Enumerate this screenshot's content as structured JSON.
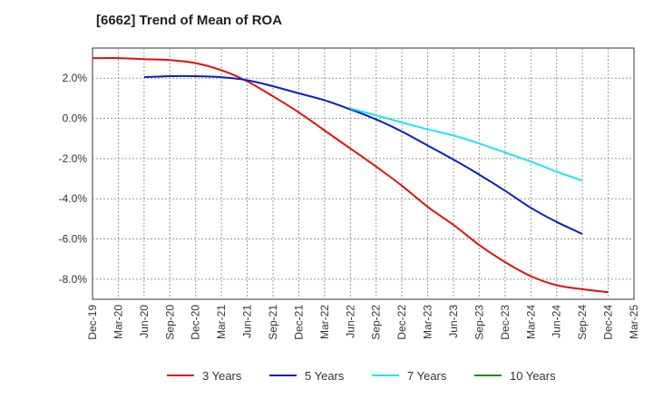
{
  "chart_data": {
    "type": "line",
    "title": "[6662]  Trend of Mean of ROA",
    "xlabel": "",
    "ylabel": "",
    "ylim": [
      -9.0,
      3.5
    ],
    "y_ticks": [
      2.0,
      0.0,
      -2.0,
      -4.0,
      -6.0,
      -8.0
    ],
    "y_tick_labels": [
      "2.0%",
      "0.0%",
      "-2.0%",
      "-4.0%",
      "-6.0%",
      "-8.0%"
    ],
    "x_tick_labels": [
      "Dec-19",
      "Mar-20",
      "Jun-20",
      "Sep-20",
      "Dec-20",
      "Mar-21",
      "Jun-21",
      "Sep-21",
      "Dec-21",
      "Mar-22",
      "Jun-22",
      "Sep-22",
      "Dec-22",
      "Mar-23",
      "Jun-23",
      "Sep-23",
      "Dec-23",
      "Mar-24",
      "Jun-24",
      "Sep-24",
      "Dec-24",
      "Mar-25"
    ],
    "grid": true,
    "series": [
      {
        "name": "3 Years",
        "color": "#dd1111",
        "x_start": 0,
        "values": [
          3.0,
          3.0,
          2.95,
          2.9,
          2.75,
          2.4,
          1.85,
          1.1,
          0.3,
          -0.6,
          -1.5,
          -2.4,
          -3.35,
          -4.4,
          -5.3,
          -6.3,
          -7.15,
          -7.85,
          -8.3,
          -8.5,
          -8.65
        ]
      },
      {
        "name": "5 Years",
        "color": "#0a1fc0",
        "x_start": 2,
        "values": [
          2.05,
          2.1,
          2.1,
          2.05,
          1.9,
          1.6,
          1.25,
          0.9,
          0.45,
          -0.05,
          -0.65,
          -1.35,
          -2.05,
          -2.8,
          -3.6,
          -4.45,
          -5.15,
          -5.75
        ]
      },
      {
        "name": "7 Years",
        "color": "#22e2ee",
        "x_start": 10,
        "values": [
          0.5,
          0.15,
          -0.2,
          -0.55,
          -0.85,
          -1.25,
          -1.7,
          -2.15,
          -2.65,
          -3.1
        ]
      },
      {
        "name": "10 Years",
        "color": "#1a8a1a",
        "x_start": 0,
        "values": []
      }
    ]
  }
}
